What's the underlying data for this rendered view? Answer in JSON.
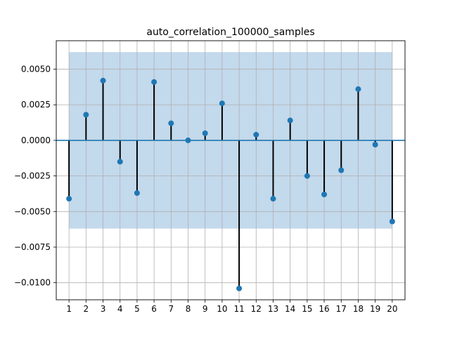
{
  "chart_data": {
    "type": "stem",
    "title": "auto_correlation_100000_samples",
    "xlabel": "",
    "ylabel": "",
    "x": [
      1,
      2,
      3,
      4,
      5,
      6,
      7,
      8,
      9,
      10,
      11,
      12,
      13,
      14,
      15,
      16,
      17,
      18,
      19,
      20
    ],
    "values": [
      -0.0041,
      0.0018,
      0.0042,
      -0.0015,
      -0.0037,
      0.0041,
      0.0012,
      0.0,
      0.0005,
      0.0026,
      -0.0104,
      0.0004,
      -0.0041,
      0.0014,
      -0.0025,
      -0.0038,
      -0.0021,
      0.0036,
      -0.0003,
      -0.0057
    ],
    "confidence_band": [
      -0.0062,
      0.0062
    ],
    "xlim": [
      0.25,
      20.75
    ],
    "ylim": [
      -0.0112,
      0.007
    ],
    "xticks": [
      "1",
      "2",
      "3",
      "4",
      "5",
      "6",
      "7",
      "8",
      "9",
      "10",
      "11",
      "12",
      "13",
      "14",
      "15",
      "16",
      "17",
      "18",
      "19",
      "20"
    ],
    "yticks": [
      {
        "value": 0.005,
        "label": "0.0050"
      },
      {
        "value": 0.0025,
        "label": "0.0025"
      },
      {
        "value": 0.0,
        "label": "0.0000"
      },
      {
        "value": -0.0025,
        "label": "−0.0025"
      },
      {
        "value": -0.005,
        "label": "−0.0050"
      },
      {
        "value": -0.0075,
        "label": "−0.0075"
      },
      {
        "value": -0.01,
        "label": "−0.0100"
      }
    ],
    "grid": true,
    "colors": {
      "marker": "#1f77b4",
      "stem": "#000000",
      "band": "#c3d9ec",
      "baseline": "#1f77b4",
      "grid": "#b0b0b0"
    }
  }
}
